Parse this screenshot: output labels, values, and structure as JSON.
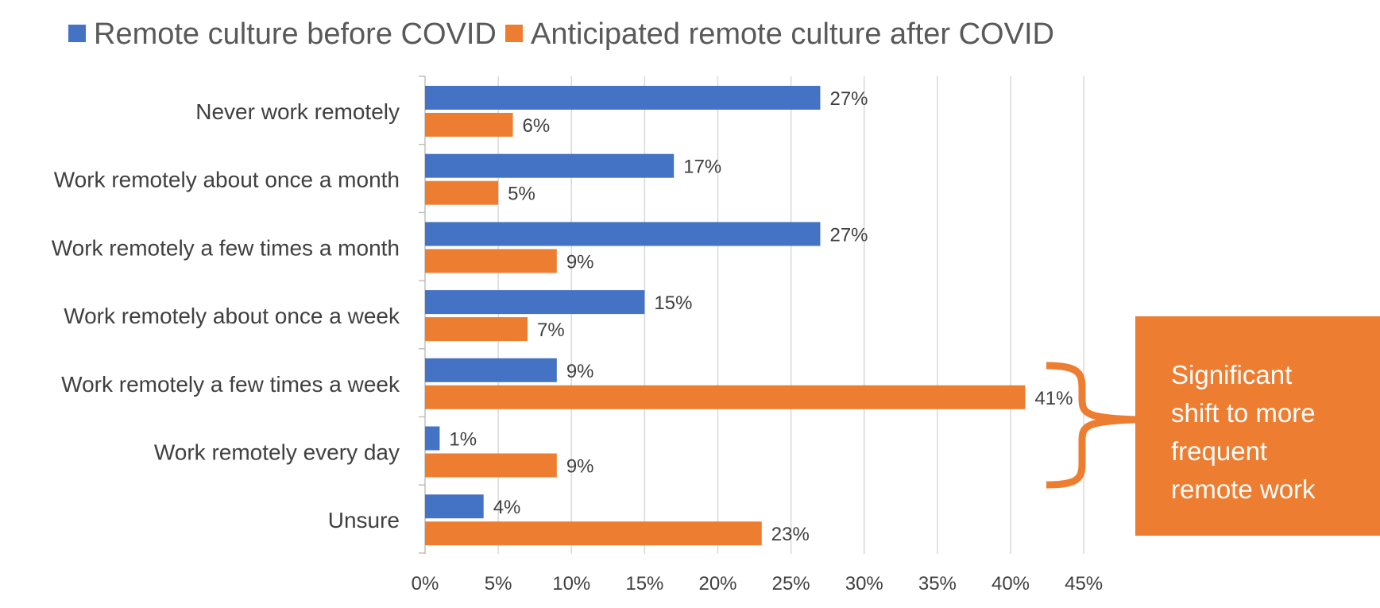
{
  "chart_data": {
    "type": "bar",
    "orientation": "horizontal",
    "categories": [
      "Never work remotely",
      "Work remotely about once a month",
      "Work remotely a few times a month",
      "Work remotely about once a week",
      "Work remotely a few times a week",
      "Work remotely every day",
      "Unsure"
    ],
    "series": [
      {
        "name": "Remote culture before COVID",
        "color": "#4472C4",
        "values": [
          27,
          17,
          27,
          15,
          9,
          1,
          4
        ],
        "labels": [
          "27%",
          "17%",
          "27%",
          "15%",
          "9%",
          "1%",
          "4%"
        ]
      },
      {
        "name": "Anticipated remote culture after COVID",
        "color": "#ED7D31",
        "values": [
          6,
          5,
          9,
          7,
          41,
          9,
          23
        ],
        "labels": [
          "6%",
          "5%",
          "9%",
          "7%",
          "41%",
          "9%",
          "23%"
        ]
      }
    ],
    "xlim": [
      0,
      45
    ],
    "xticks": [
      0,
      5,
      10,
      15,
      20,
      25,
      30,
      35,
      40,
      45
    ],
    "xtick_labels": [
      "0%",
      "5%",
      "10%",
      "15%",
      "20%",
      "25%",
      "30%",
      "35%",
      "40%",
      "45%"
    ],
    "grid": true,
    "legend_position": "top",
    "annotation": {
      "lines": [
        "Significant",
        "shift to more",
        "frequent",
        "remote work"
      ],
      "color": "#ED7D31",
      "brace_categories": [
        "Work remotely a few times a week",
        "Work remotely every day"
      ]
    }
  }
}
